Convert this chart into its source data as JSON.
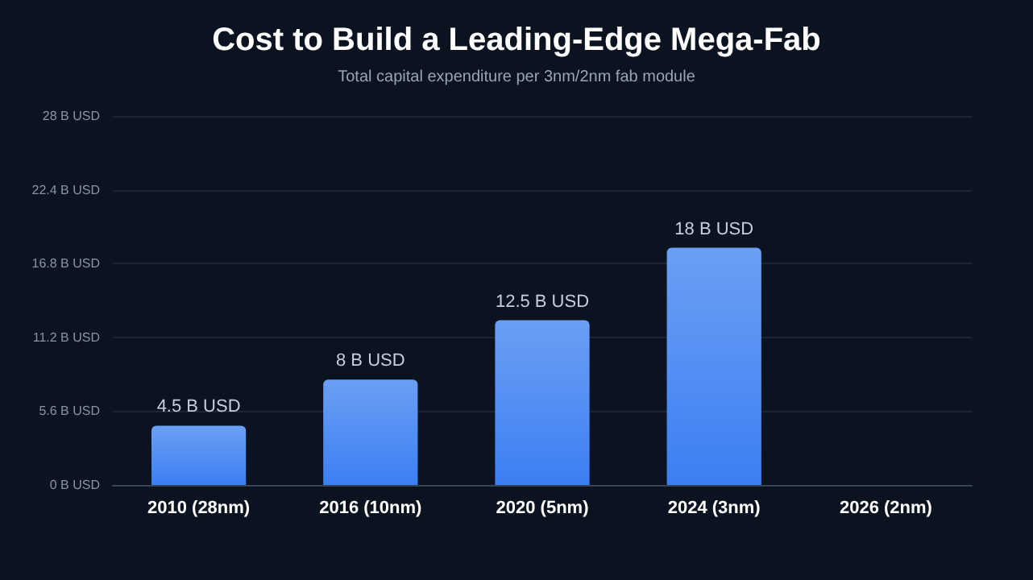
{
  "chart_data": {
    "type": "bar",
    "title": "Cost to Build a Leading-Edge Mega-Fab",
    "subtitle": "Total capital expenditure per 3nm/2nm fab module",
    "categories": [
      "2010 (28nm)",
      "2016 (10nm)",
      "2020 (5nm)",
      "2024 (3nm)",
      "2026 (2nm)"
    ],
    "values": [
      4.5,
      8,
      12.5,
      18,
      null
    ],
    "color": "#3b7ff2",
    "value_labels": [
      "4.5 B USD",
      "8 B USD",
      "12.5 B USD",
      "18 B USD",
      null
    ],
    "ylim": [
      0,
      28
    ],
    "yticks": [
      {
        "value": 0,
        "label": "0 B USD"
      },
      {
        "value": 5.6,
        "label": "5.6 B USD"
      },
      {
        "value": 11.2,
        "label": "11.2 B USD"
      },
      {
        "value": 16.8,
        "label": "16.8 B USD"
      },
      {
        "value": 22.4,
        "label": "22.4 B USD"
      },
      {
        "value": 28,
        "label": "28 B USD"
      }
    ],
    "grid": "y",
    "legend": false
  }
}
